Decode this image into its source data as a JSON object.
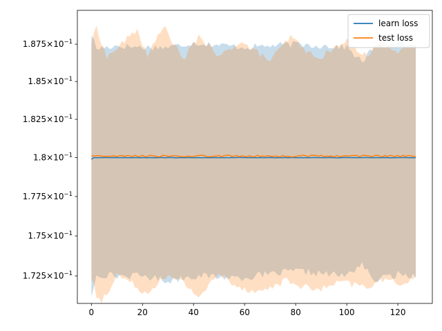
{
  "chart_data": {
    "type": "line",
    "title": "",
    "xlabel": "",
    "ylabel": "",
    "xlim": [
      -5.5,
      133.5
    ],
    "ylim": [
      0.1708,
      0.1898
    ],
    "yscale": "log",
    "grid": false,
    "legend_position": "top-right",
    "x_ticks": [
      {
        "value": 0,
        "label": "0"
      },
      {
        "value": 20,
        "label": "20"
      },
      {
        "value": 40,
        "label": "40"
      },
      {
        "value": 60,
        "label": "60"
      },
      {
        "value": 80,
        "label": "80"
      },
      {
        "value": 100,
        "label": "100"
      },
      {
        "value": 120,
        "label": "120"
      }
    ],
    "y_ticks": [
      {
        "value": 0.1875,
        "mantissa": "1.875",
        "base": "10",
        "exp": "−1"
      },
      {
        "value": 0.185,
        "mantissa": "1.85",
        "base": "10",
        "exp": "−1"
      },
      {
        "value": 0.1825,
        "mantissa": "1.825",
        "base": "10",
        "exp": "−1"
      },
      {
        "value": 0.18,
        "mantissa": "1.8",
        "base": "10",
        "exp": "−1"
      },
      {
        "value": 0.1775,
        "mantissa": "1.775",
        "base": "10",
        "exp": "−1"
      },
      {
        "value": 0.175,
        "mantissa": "1.75",
        "base": "10",
        "exp": "−1"
      },
      {
        "value": 0.1725,
        "mantissa": "1.725",
        "base": "10",
        "exp": "−1"
      }
    ],
    "x_range": [
      0,
      127
    ],
    "series": [
      {
        "name": "learn loss",
        "color": "#1f77b4",
        "band_color": "#1f77b4",
        "band_opacity": 0.25,
        "mean_start": 0.1799,
        "mean": 0.18,
        "upper_anchors": [
          [
            0,
            0.1882
          ],
          [
            2,
            0.1872
          ],
          [
            10,
            0.1874
          ],
          [
            20,
            0.1873
          ],
          [
            30,
            0.1873
          ],
          [
            40,
            0.1876
          ],
          [
            60,
            0.1873
          ],
          [
            80,
            0.1875
          ],
          [
            100,
            0.1873
          ],
          [
            106,
            0.1863
          ],
          [
            110,
            0.1872
          ],
          [
            120,
            0.1876
          ],
          [
            127,
            0.1873
          ]
        ],
        "lower_anchors": [
          [
            0,
            0.1713
          ],
          [
            2,
            0.1726
          ],
          [
            10,
            0.1725
          ],
          [
            20,
            0.1725
          ],
          [
            30,
            0.1722
          ],
          [
            40,
            0.1725
          ],
          [
            60,
            0.1724
          ],
          [
            80,
            0.1728
          ],
          [
            100,
            0.1725
          ],
          [
            106,
            0.1733
          ],
          [
            110,
            0.1722
          ],
          [
            120,
            0.1726
          ],
          [
            127,
            0.1725
          ]
        ]
      },
      {
        "name": "test loss",
        "color": "#ff7f0e",
        "band_color": "#ff7f0e",
        "band_opacity": 0.25,
        "mean": 0.1801,
        "upper_anchors": [
          [
            0,
            0.1875
          ],
          [
            2,
            0.1887
          ],
          [
            6,
            0.1866
          ],
          [
            18,
            0.1885
          ],
          [
            22,
            0.1866
          ],
          [
            28,
            0.1888
          ],
          [
            36,
            0.1864
          ],
          [
            42,
            0.1881
          ],
          [
            50,
            0.1866
          ],
          [
            58,
            0.1877
          ],
          [
            70,
            0.1864
          ],
          [
            78,
            0.188
          ],
          [
            88,
            0.1865
          ],
          [
            100,
            0.1877
          ],
          [
            108,
            0.1867
          ],
          [
            114,
            0.1879
          ],
          [
            120,
            0.1869
          ],
          [
            127,
            0.1874
          ]
        ],
        "lower_anchors": [
          [
            0,
            0.1724
          ],
          [
            2,
            0.1713
          ],
          [
            4,
            0.1709
          ],
          [
            10,
            0.1726
          ],
          [
            18,
            0.1718
          ],
          [
            22,
            0.1714
          ],
          [
            28,
            0.1725
          ],
          [
            36,
            0.1721
          ],
          [
            42,
            0.1712
          ],
          [
            50,
            0.1726
          ],
          [
            58,
            0.1718
          ],
          [
            66,
            0.1715
          ],
          [
            76,
            0.1722
          ],
          [
            88,
            0.1716
          ],
          [
            98,
            0.1721
          ],
          [
            108,
            0.1718
          ],
          [
            114,
            0.1723
          ],
          [
            120,
            0.172
          ],
          [
            127,
            0.1724
          ]
        ]
      }
    ]
  }
}
